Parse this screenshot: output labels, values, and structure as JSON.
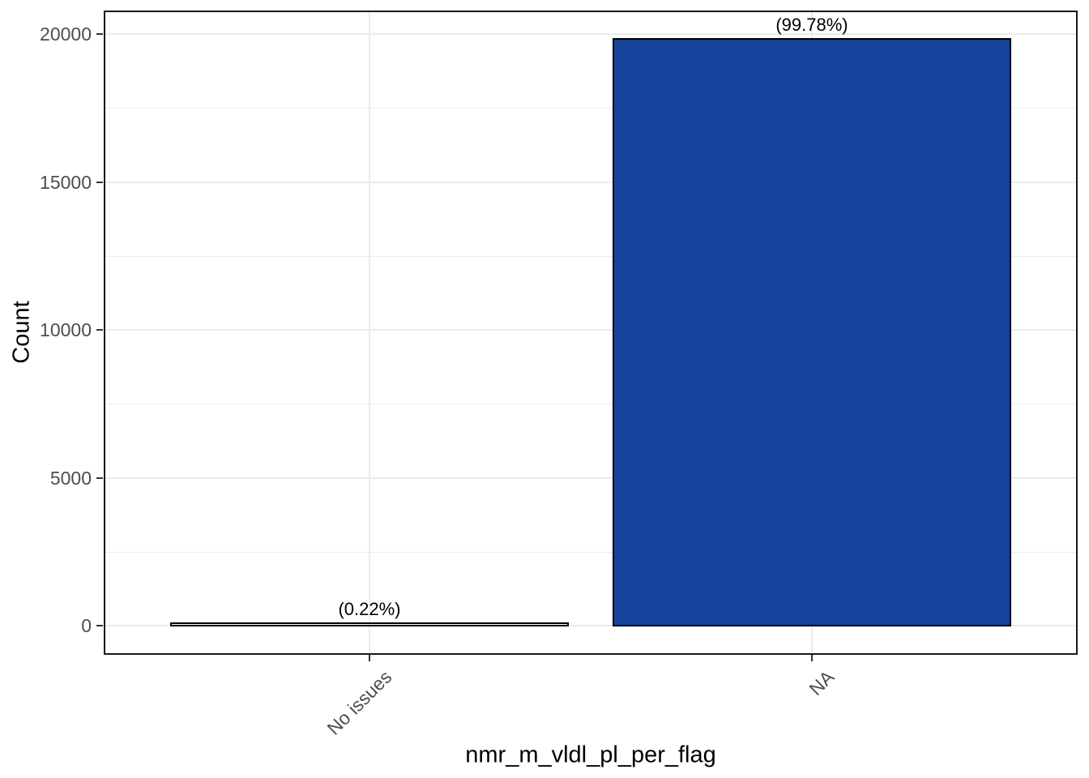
{
  "chart_data": {
    "type": "bar",
    "title": "",
    "xlabel": "nmr_m_vldl_pl_per_flag",
    "ylabel": "Count",
    "categories": [
      "No issues",
      "NA"
    ],
    "values": [
      44,
      19810
    ],
    "bar_labels": [
      "(0.22%)",
      "(99.78%)"
    ],
    "percentages": [
      0.22,
      99.78
    ],
    "yticks": [
      0,
      5000,
      10000,
      15000,
      20000
    ],
    "ytick_labels": [
      "0",
      "5000",
      "10000",
      "15000",
      "20000"
    ],
    "yminor": [
      2500,
      7500,
      12500,
      17500
    ],
    "ylim": [
      0,
      20800
    ],
    "grid": "horizontal major+minor, vertical major at category centers",
    "legend": "none",
    "colors": {
      "bar_fills": [
        "#FFFFFF",
        "#17439C"
      ],
      "bar_border": "#000000",
      "grid": "#EBEBEB",
      "panel_border": "#1A1A1A",
      "tick_label": "#4D4D4D",
      "axis_title": "#000000",
      "background": "#FFFFFF"
    }
  }
}
